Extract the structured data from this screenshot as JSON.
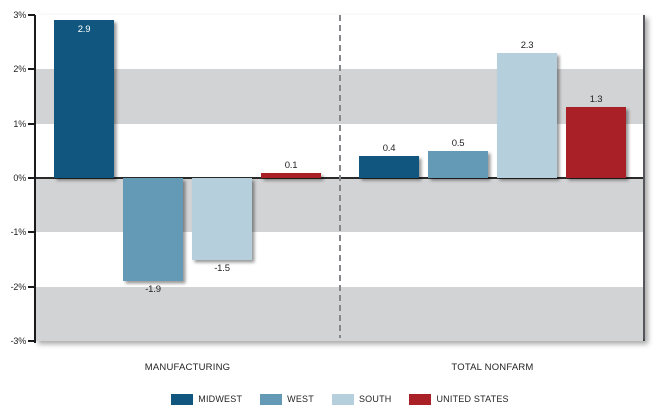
{
  "chart_data": {
    "type": "bar",
    "title": "",
    "groups": [
      "MANUFACTURING",
      "TOTAL NONFARM"
    ],
    "series": [
      {
        "name": "MIDWEST",
        "color": "#10567f",
        "values": [
          2.9,
          0.4
        ],
        "labels": [
          "2.9",
          "0.4"
        ],
        "label_inside": [
          true,
          false
        ]
      },
      {
        "name": "WEST",
        "color": "#649ab6",
        "values": [
          -1.9,
          0.5
        ],
        "labels": [
          "-1.9",
          "0.5"
        ],
        "label_inside": [
          false,
          false
        ]
      },
      {
        "name": "SOUTH",
        "color": "#b6cfdd",
        "values": [
          -1.5,
          2.3
        ],
        "labels": [
          "-1.5",
          "2.3"
        ],
        "label_inside": [
          false,
          false
        ]
      },
      {
        "name": "UNITED STATES",
        "color": "#a92026",
        "values": [
          0.1,
          1.3
        ],
        "labels": [
          "0.1",
          "1.3"
        ],
        "label_inside": [
          false,
          false
        ]
      }
    ],
    "ylim": [
      -3,
      3
    ],
    "ytick_labels": [
      "3%",
      "2%",
      "1%",
      "0%",
      "-1%",
      "-2%",
      "-3%"
    ],
    "band_color": "#d2d3d4",
    "grid": "alternating-horizontal-bands",
    "divider_style": "dashed-vertical-between-groups",
    "legend_position": "bottom",
    "value_label_color": "#221f1f",
    "inside_label_color": "#ffffff"
  }
}
